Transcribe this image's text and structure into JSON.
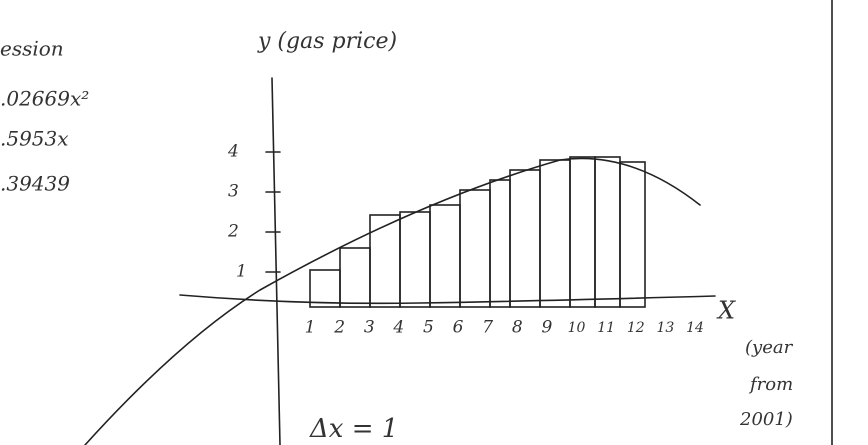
{
  "regression": {
    "heading": "ession",
    "term_1": ".02669x²",
    "term_2": ".5953x",
    "term_3": ".39439"
  },
  "y_axis": {
    "label": "y (gas price)",
    "ticks": [
      "1",
      "2",
      "3",
      "4"
    ]
  },
  "x_axis": {
    "label": "X",
    "ticks": [
      "1",
      "2",
      "3",
      "4",
      "5",
      "6",
      "7",
      "8",
      "9",
      "10",
      "11",
      "12",
      "13",
      "14"
    ],
    "note": [
      "(year",
      "from",
      "2001)"
    ]
  },
  "delta": "Δx = 1"
}
